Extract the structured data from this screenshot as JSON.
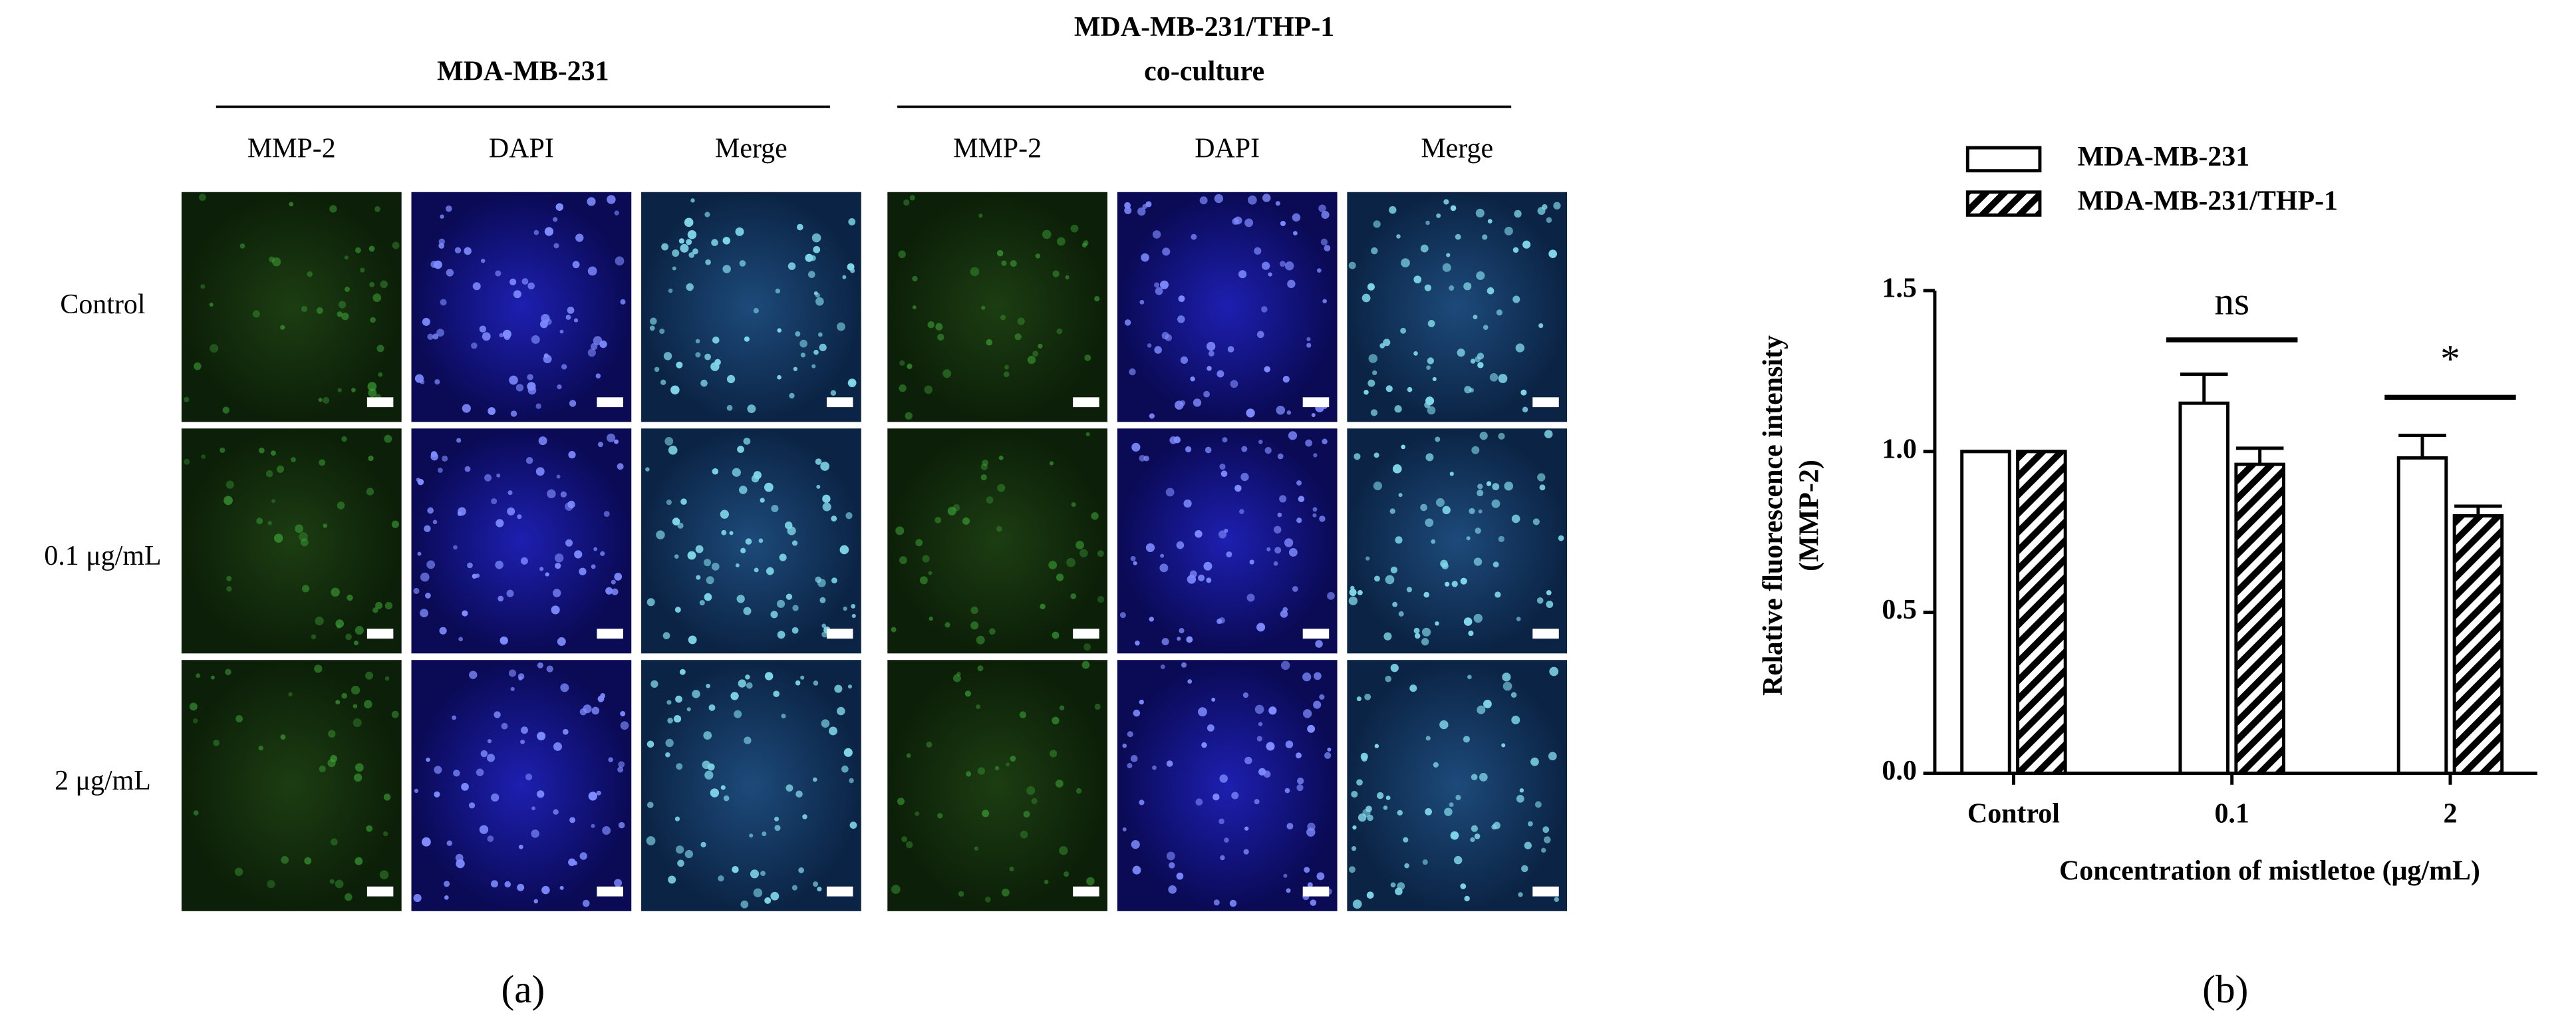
{
  "panel_a": {
    "groups": [
      {
        "title": [
          "MDA-MB-231"
        ],
        "columns": [
          "MMP-2",
          "DAPI",
          "Merge"
        ]
      },
      {
        "title": [
          "MDA-MB-231/THP-1",
          "co-culture"
        ],
        "columns": [
          "MMP-2",
          "DAPI",
          "Merge"
        ]
      }
    ],
    "rows": [
      "Control",
      "0.1 μg/mL",
      "2 μg/mL"
    ],
    "caption": "(a)"
  },
  "chart_data": {
    "type": "bar",
    "ylabel": [
      "Relative fluorescence intensity",
      "(MMP-2)"
    ],
    "xlabel": "Concentration of mistletoe (μg/mL)",
    "categories": [
      "Control",
      "0.1",
      "2"
    ],
    "series": [
      {
        "name": "MDA-MB-231",
        "color": "#000000",
        "hatch": false,
        "values": [
          1.0,
          1.15,
          0.98
        ],
        "errors": [
          0,
          0.09,
          0.07
        ]
      },
      {
        "name": "MDA-MB-231/THP-1",
        "color": "#000000",
        "hatch": true,
        "values": [
          1.0,
          0.96,
          0.8
        ],
        "errors": [
          0,
          0.05,
          0.03
        ]
      }
    ],
    "ylim": [
      0,
      1.5
    ],
    "yticks": [
      {
        "value": 0,
        "label": "0.0"
      },
      0.5,
      {
        "value": 1,
        "label": "1.0"
      },
      1.5
    ],
    "annotations": [
      "ns",
      "*"
    ],
    "caption": "(b)"
  }
}
